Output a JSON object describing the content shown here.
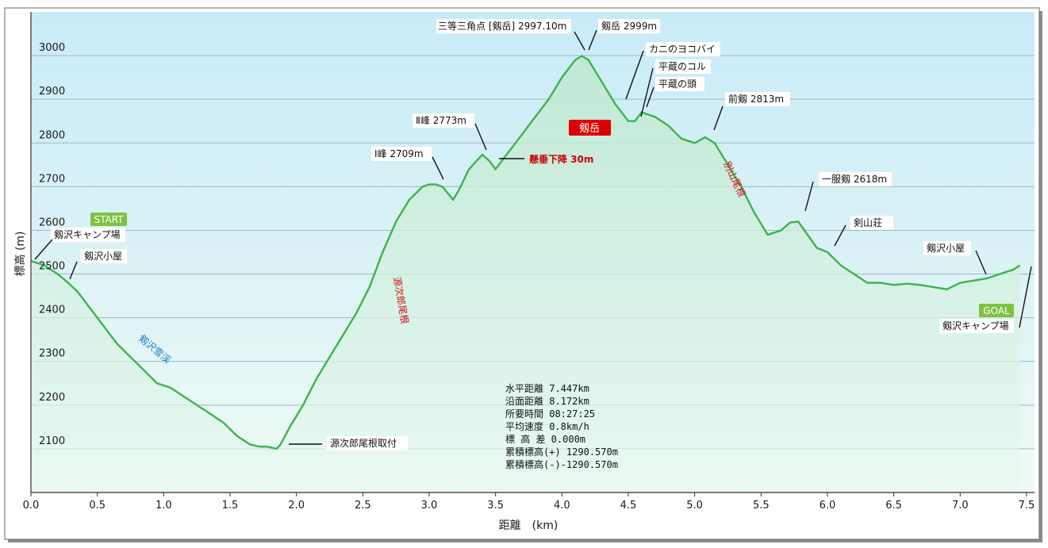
{
  "chart_data": {
    "type": "area",
    "xlabel": "距離　(km)",
    "ylabel": "標高 (m)",
    "xlim": [
      0,
      7.5
    ],
    "ylim": [
      2000,
      3100
    ],
    "x_ticks": [
      "0.0",
      "0.5",
      "1.0",
      "1.5",
      "2.0",
      "2.5",
      "3.0",
      "3.5",
      "4.0",
      "4.5",
      "5.0",
      "5.5",
      "6.0",
      "6.5",
      "7.0",
      "7.5"
    ],
    "y_ticks": [
      "2100",
      "2200",
      "2300",
      "2400",
      "2500",
      "2600",
      "2700",
      "2800",
      "2900",
      "3000"
    ],
    "grid": true,
    "series": [
      {
        "x": [
          0,
          0.1,
          0.2,
          0.28,
          0.35,
          0.45,
          0.55,
          0.65,
          0.75,
          0.85,
          0.95,
          1.05,
          1.15,
          1.25,
          1.35,
          1.45,
          1.55,
          1.65,
          1.72,
          1.78,
          1.85,
          1.88,
          1.95,
          2.05,
          2.15,
          2.25,
          2.35,
          2.45,
          2.55,
          2.65,
          2.75,
          2.85,
          2.95,
          3.0,
          3.05,
          3.1,
          3.18,
          3.22,
          3.3,
          3.4,
          3.45,
          3.5,
          3.55,
          3.6,
          3.7,
          3.8,
          3.9,
          4.0,
          4.1,
          4.15,
          4.2,
          4.3,
          4.4,
          4.5,
          4.55,
          4.6,
          4.7,
          4.8,
          4.9,
          5.0,
          5.08,
          5.15,
          5.25,
          5.35,
          5.45,
          5.55,
          5.65,
          5.72,
          5.78,
          5.85,
          5.92,
          6.0,
          6.1,
          6.2,
          6.3,
          6.4,
          6.5,
          6.6,
          6.7,
          6.8,
          6.9,
          7.0,
          7.1,
          7.2,
          7.3,
          7.4,
          7.45
        ],
        "y": [
          2530,
          2520,
          2500,
          2480,
          2460,
          2420,
          2380,
          2340,
          2310,
          2280,
          2250,
          2240,
          2220,
          2200,
          2180,
          2160,
          2130,
          2110,
          2105,
          2105,
          2100,
          2110,
          2150,
          2200,
          2260,
          2310,
          2360,
          2410,
          2470,
          2550,
          2620,
          2670,
          2700,
          2705,
          2705,
          2700,
          2670,
          2690,
          2740,
          2773,
          2760,
          2740,
          2760,
          2780,
          2820,
          2860,
          2900,
          2950,
          2990,
          2999,
          2990,
          2940,
          2890,
          2850,
          2850,
          2870,
          2860,
          2840,
          2810,
          2800,
          2813,
          2800,
          2750,
          2700,
          2640,
          2590,
          2600,
          2618,
          2620,
          2590,
          2560,
          2550,
          2520,
          2500,
          2480,
          2480,
          2475,
          2478,
          2475,
          2470,
          2465,
          2480,
          2485,
          2490,
          2500,
          2510,
          2520
        ]
      }
    ],
    "annotations": [
      {
        "label": "剱沢キャンプ場"
      },
      {
        "label": "剱沢小屋"
      },
      {
        "label": "源次郎尾根取付"
      },
      {
        "label": "Ⅰ峰 2709m"
      },
      {
        "label": "Ⅱ峰 2773m"
      },
      {
        "label": "懸垂下降 30m"
      },
      {
        "label": "三等三角点 [剱岳] 2997.10m"
      },
      {
        "label": "剱岳 2999m"
      },
      {
        "label": "カニのヨコバイ"
      },
      {
        "label": "平蔵のコル"
      },
      {
        "label": "平蔵の頭"
      },
      {
        "label": "前剱 2813m"
      },
      {
        "label": "一服剱 2618m"
      },
      {
        "label": "剣山荘"
      },
      {
        "label": "剱沢小屋"
      },
      {
        "label": "剱沢キャンプ場"
      }
    ],
    "ridge_labels": {
      "left_valley": "剱沢雪渓",
      "genjiro": "源次郎尾根",
      "betsuzan": "別山尾根"
    },
    "badges": {
      "start": "START",
      "goal": "GOAL",
      "summit": "剱岳"
    },
    "stats": [
      "水平距離 7.447km",
      "沿面距離 8.172km",
      "所要時間 08:27:25",
      "平均速度 0.8km/h",
      "標 高 差 0.000m",
      "累積標高(+) 1290.570m",
      "累積標高(-)-1290.570m"
    ],
    "colors": {
      "line": "#3cb44b",
      "badge_green": "#7fc241",
      "badge_red": "#dd0000",
      "bg_top": "#c6e9f7",
      "bg_bottom": "#eaf8f1"
    }
  }
}
